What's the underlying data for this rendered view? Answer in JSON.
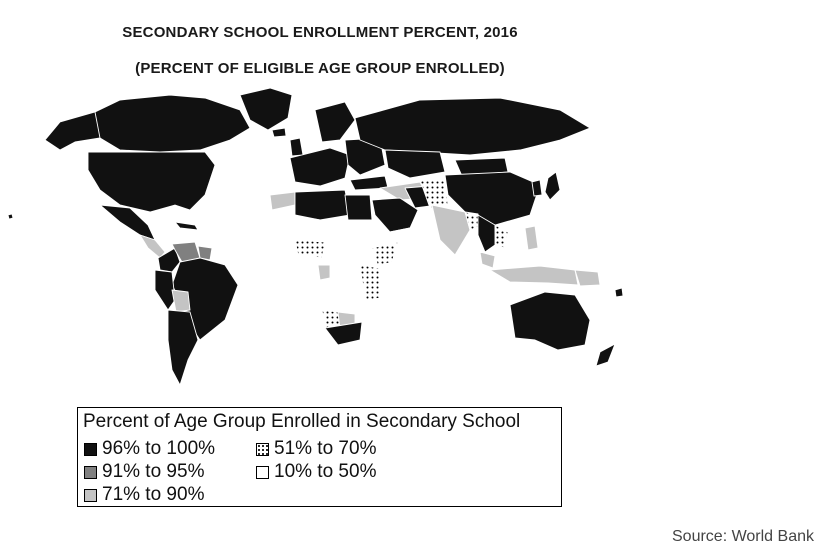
{
  "title": "SECONDARY SCHOOL ENROLLMENT PERCENT, 2016",
  "subtitle": "(PERCENT OF ELIGIBLE AGE GROUP ENROLLED)",
  "legend": {
    "title": "Percent of Age Group Enrolled in Secondary School",
    "items": [
      {
        "label": "96% to 100%",
        "fill": "#111111",
        "pattern": "solid"
      },
      {
        "label": "91% to 95%",
        "fill": "#808080",
        "pattern": "solid"
      },
      {
        "label": "71% to 90%",
        "fill": "#c4c4c4",
        "pattern": "solid"
      },
      {
        "label": "51% to 70%",
        "fill": "#ffffff",
        "pattern": "dots"
      },
      {
        "label": "10% to 50%",
        "fill": "#ffffff",
        "pattern": "solid"
      }
    ]
  },
  "source": "Source: World Bank",
  "colors": {
    "high": "#111111",
    "upper_mid": "#808080",
    "mid": "#c4c4c4",
    "low_mid": "dots",
    "low": "#ffffff"
  }
}
